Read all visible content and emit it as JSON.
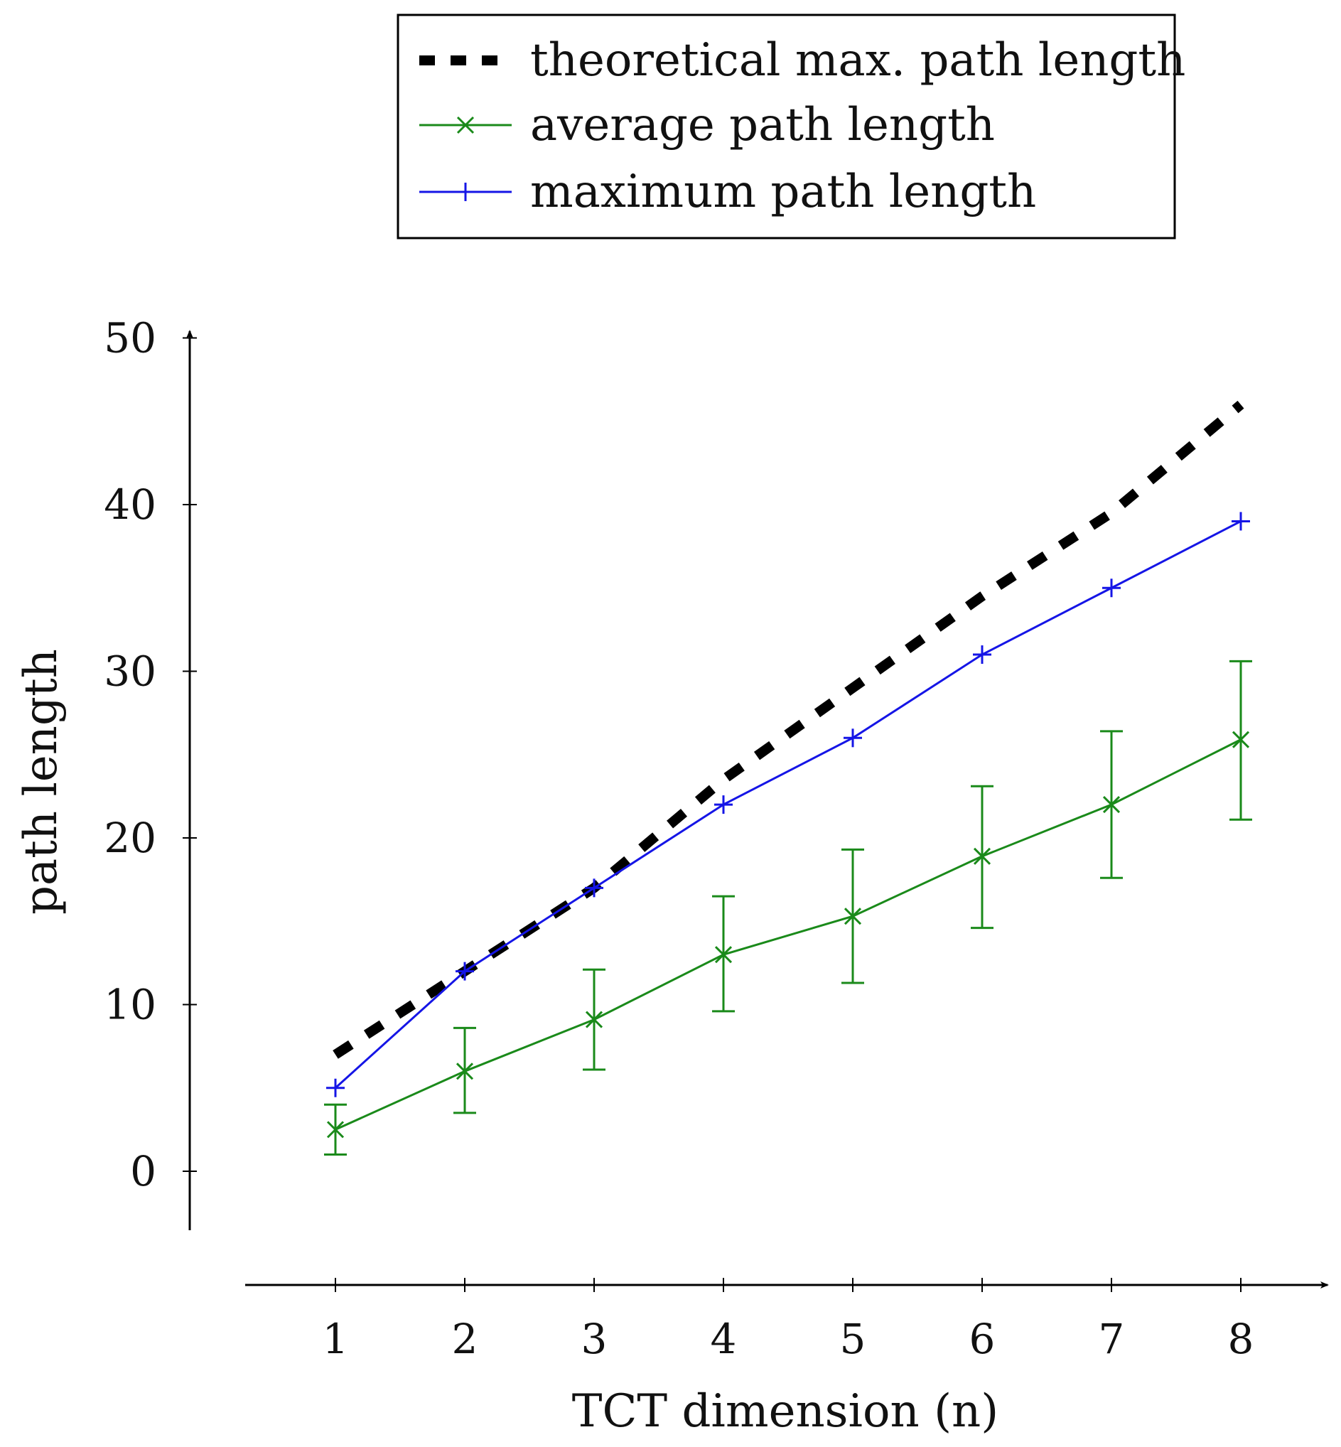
{
  "chart_data": {
    "type": "line",
    "title": "",
    "xlabel": "TCT dimension (n)",
    "ylabel": "path length",
    "xlim": [
      0.3,
      8.7
    ],
    "ylim": [
      -3.5,
      50
    ],
    "x": [
      1,
      2,
      3,
      4,
      5,
      6,
      7,
      8
    ],
    "x_ticks": [
      "1",
      "2",
      "3",
      "4",
      "5",
      "6",
      "7",
      "8"
    ],
    "y_ticks": [
      "0",
      "10",
      "20",
      "30",
      "40",
      "50"
    ],
    "grid": false,
    "legend_position": "top",
    "series": [
      {
        "name": "theoretical max. path length",
        "style": "thick dashed",
        "color": "#000000",
        "values": [
          7,
          12,
          17,
          23.5,
          29,
          34.5,
          39.5,
          46
        ]
      },
      {
        "name": "average path length",
        "style": "solid, x markers, error bars",
        "color": "#1a8a1a",
        "values": [
          2.5,
          6,
          9.1,
          13,
          15.3,
          18.9,
          22,
          25.9
        ],
        "error_low": [
          1,
          3.5,
          6.1,
          9.6,
          11.3,
          14.6,
          17.6,
          21.1
        ],
        "error_high": [
          4,
          8.6,
          12.1,
          16.5,
          19.3,
          23.1,
          26.4,
          30.6
        ]
      },
      {
        "name": "maximum path length",
        "style": "solid, + markers",
        "color": "#1515e6",
        "values": [
          5,
          12,
          17,
          22,
          26,
          31,
          35,
          39
        ]
      }
    ]
  },
  "legend": {
    "items": [
      {
        "label": "theoretical max. path length"
      },
      {
        "label": "average path length"
      },
      {
        "label": "maximum path length"
      }
    ]
  }
}
